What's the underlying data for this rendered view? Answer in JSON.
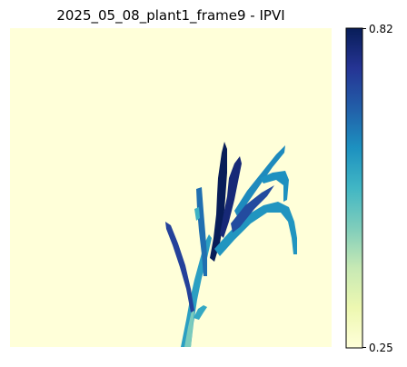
{
  "chart_data": {
    "type": "heatmap",
    "title": "2025_05_08_plant1_frame9 - IPVI",
    "xlabel": "",
    "ylabel": "",
    "axes_visible": false,
    "background_value": 0.25,
    "colormap": {
      "name": "YlGnBu",
      "stops": [
        "#ffffd9",
        "#edf8b1",
        "#c7e9b4",
        "#7fcdbb",
        "#41b6c4",
        "#1d91c0",
        "#225ea8",
        "#253494",
        "#081d58"
      ]
    },
    "colorbar": {
      "min": 0.25,
      "max": 0.82,
      "tick_labels": [
        "0.82",
        "0.25"
      ]
    },
    "plant_value_range": [
      0.45,
      0.82
    ],
    "legend": "none"
  }
}
